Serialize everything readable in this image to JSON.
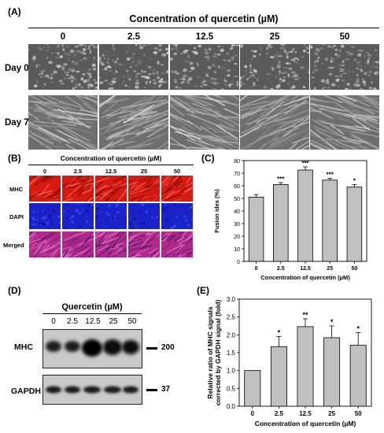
{
  "panelA": {
    "label": "(A)",
    "title": "Concentration of quercetin (µM)",
    "concentrations": [
      "0",
      "2.5",
      "12.5",
      "25",
      "50"
    ],
    "rows": [
      "Day 0",
      "Day 7"
    ]
  },
  "panelB": {
    "label": "(B)",
    "title": "Concentration of quercetin (µM)",
    "concentrations": [
      "0",
      "2.5",
      "12.5",
      "25",
      "50"
    ],
    "rows": [
      "MHC",
      "DAPI",
      "Merged"
    ],
    "row_colors": [
      "#d41a12",
      "#1a22c8",
      "#b12a8a"
    ]
  },
  "panelC": {
    "label": "(C)",
    "chart_data": {
      "type": "bar",
      "categories": [
        "0",
        "2.5",
        "12.5",
        "25",
        "50"
      ],
      "values": [
        51,
        61,
        72.5,
        64.5,
        59
      ],
      "errors": [
        2,
        1.5,
        2.5,
        1.5,
        2
      ],
      "significance": [
        "",
        "***",
        "***",
        "***",
        "*"
      ],
      "xlabel": "Concentration of quercetin (µM)",
      "ylabel": "Fusion idex (%)",
      "ylim": [
        0,
        80
      ],
      "yticks": [
        "0",
        "10",
        "20",
        "30",
        "40",
        "50",
        "60",
        "70",
        "80"
      ],
      "bar_color": "#c0c0c0"
    }
  },
  "panelD": {
    "label": "(D)",
    "title": "Quercetin (µM)",
    "concentrations": [
      "0",
      "2.5",
      "12.5",
      "25",
      "50"
    ],
    "bands": [
      "MHC",
      "GAPDH"
    ],
    "markers": [
      "200",
      "37"
    ]
  },
  "panelE": {
    "label": "(E)",
    "chart_data": {
      "type": "bar",
      "categories": [
        "0",
        "2.5",
        "12.5",
        "25",
        "50"
      ],
      "values": [
        1.0,
        1.67,
        2.23,
        1.92,
        1.71
      ],
      "errors": [
        0,
        0.28,
        0.22,
        0.33,
        0.35
      ],
      "significance": [
        "",
        "*",
        "**",
        "*",
        "*"
      ],
      "xlabel": "Concentration of quercetin (µM)",
      "ylabel": "Relative ratio of MHC signals corrected by GAPDH signal (fold)",
      "ylim": [
        0,
        3.0
      ],
      "yticks": [
        "0.0",
        "0.5",
        "1.0",
        "1.5",
        "2.0",
        "2.5",
        "3.0"
      ],
      "bar_color": "#c0c0c0"
    }
  }
}
